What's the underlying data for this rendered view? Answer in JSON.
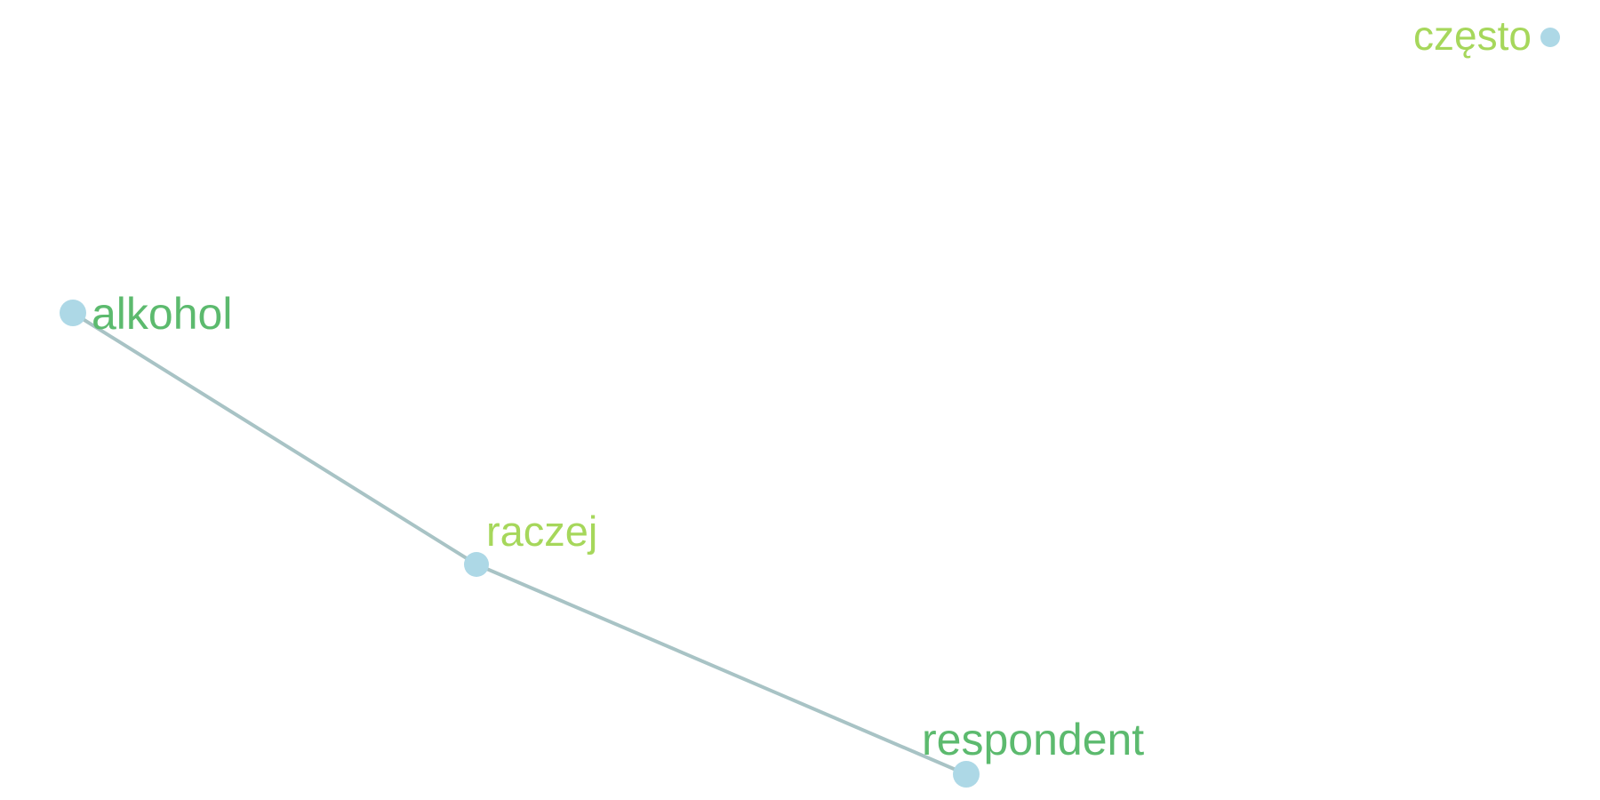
{
  "nodes": [
    {
      "id": "alkohol",
      "label": "alkohol",
      "color": "#5cba6e",
      "dot_color": "#add8e6"
    },
    {
      "id": "raczej",
      "label": "raczej",
      "color": "#a6d75b",
      "dot_color": "#add8e6"
    },
    {
      "id": "respondent",
      "label": "respondent",
      "color": "#5cba6e",
      "dot_color": "#add8e6"
    },
    {
      "id": "czesto",
      "label": "często",
      "color": "#a6d75b",
      "dot_color": "#add8e6"
    }
  ],
  "edges": [
    {
      "from": "alkohol",
      "to": "raczej"
    },
    {
      "from": "raczej",
      "to": "respondent"
    }
  ],
  "edge_color": "#a8c3c5"
}
